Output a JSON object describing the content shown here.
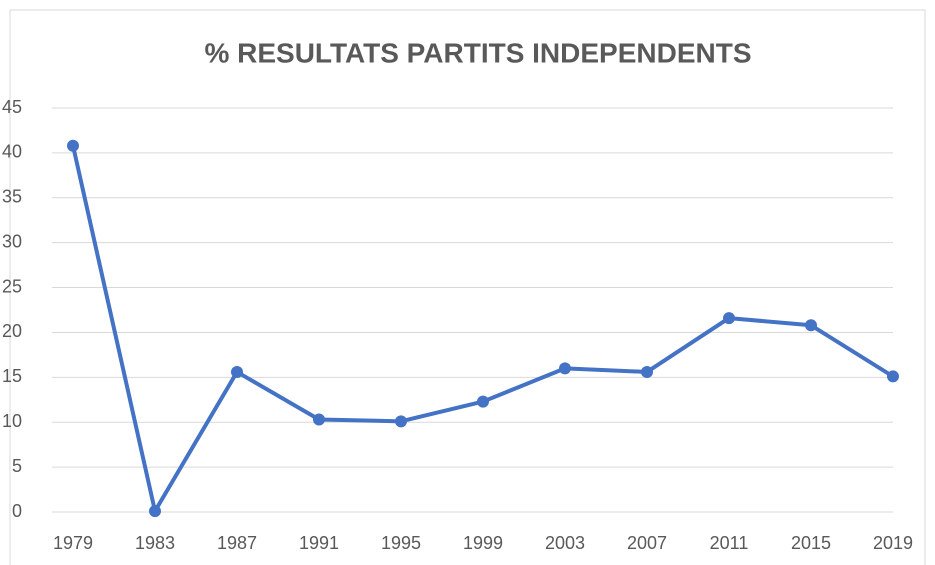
{
  "chart_data": {
    "type": "line",
    "title": "% RESULTATS PARTITS INDEPENDENTS",
    "categories": [
      "1979",
      "1983",
      "1987",
      "1991",
      "1995",
      "1999",
      "2003",
      "2007",
      "2011",
      "2015",
      "2019"
    ],
    "series": [
      {
        "name": "% RESULTATS PARTITS INDEPENDENTS",
        "color": "#4472c4",
        "values": [
          40.8,
          0.1,
          15.6,
          10.3,
          10.1,
          12.3,
          16,
          15.6,
          21.6,
          20.8,
          15.1
        ]
      }
    ],
    "ylim": [
      0,
      45
    ],
    "yticks": [
      0,
      5,
      10,
      15,
      20,
      25,
      30,
      35,
      40,
      45
    ],
    "grid": true
  }
}
